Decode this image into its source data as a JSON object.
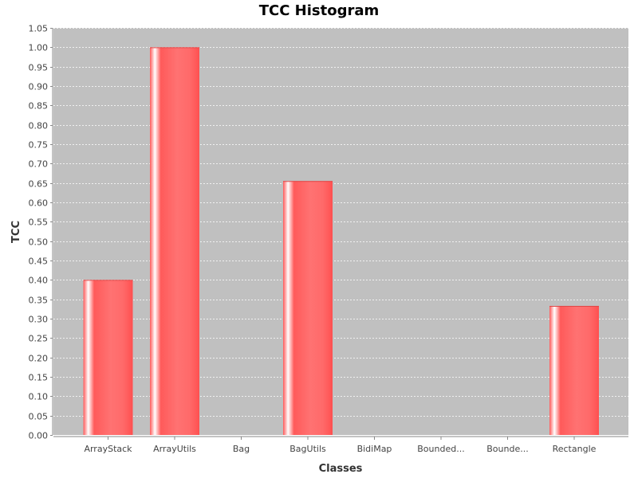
{
  "chart_data": {
    "type": "bar",
    "title": "TCC Histogram",
    "xlabel": "Classes",
    "ylabel": "TCC",
    "categories": [
      "ArrayStack",
      "ArrayUtils",
      "Bag",
      "BagUtils",
      "BidiMap",
      "Bounded...",
      "Bounde...",
      "Rectangle"
    ],
    "values": [
      0.4,
      1.0,
      0,
      0.655,
      0,
      0,
      0,
      0.333
    ],
    "ylim": [
      0,
      1.05
    ],
    "ytick_step": 0.05,
    "grid": true,
    "legend": "none"
  },
  "colors": {
    "plot_background": "#c0c0c0",
    "bar": "#ff6060",
    "bar_highlight": "#ffffff",
    "gridline": "#ffffff"
  }
}
